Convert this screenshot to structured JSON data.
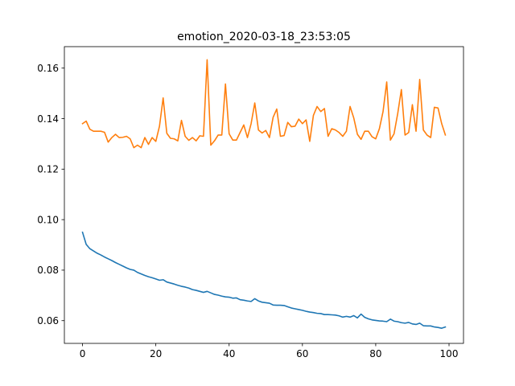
{
  "chart_data": {
    "type": "line",
    "title": "emotion_2020-03-18_23:53:05",
    "xlabel": "",
    "ylabel": "",
    "xlim": [
      -4.95,
      103.95
    ],
    "ylim": [
      0.051,
      0.1685
    ],
    "grid": false,
    "x_ticks": [
      0,
      20,
      40,
      60,
      80,
      100
    ],
    "x_tick_labels": [
      "0",
      "20",
      "40",
      "60",
      "80",
      "100"
    ],
    "y_ticks": [
      0.06,
      0.08,
      0.1,
      0.12,
      0.14,
      0.16
    ],
    "y_tick_labels": [
      "0.06",
      "0.08",
      "0.10",
      "0.12",
      "0.14",
      "0.16"
    ],
    "series": [
      {
        "color": "#1f77b4",
        "x": [
          0,
          1,
          2,
          3,
          4,
          5,
          6,
          7,
          8,
          9,
          10,
          11,
          12,
          13,
          14,
          15,
          16,
          17,
          18,
          19,
          20,
          21,
          22,
          23,
          24,
          25,
          26,
          27,
          28,
          29,
          30,
          31,
          32,
          33,
          34,
          35,
          36,
          37,
          38,
          39,
          40,
          41,
          42,
          43,
          44,
          45,
          46,
          47,
          48,
          49,
          50,
          51,
          52,
          53,
          54,
          55,
          56,
          57,
          58,
          59,
          60,
          61,
          62,
          63,
          64,
          65,
          66,
          67,
          68,
          69,
          70,
          71,
          72,
          73,
          74,
          75,
          76,
          77,
          78,
          79,
          80,
          81,
          82,
          83,
          84,
          85,
          86,
          87,
          88,
          89,
          90,
          91,
          92,
          93,
          94,
          95,
          96,
          97,
          98,
          99
        ],
        "values": [
          0.095,
          0.0902,
          0.0885,
          0.0876,
          0.0867,
          0.086,
          0.0852,
          0.0845,
          0.0838,
          0.083,
          0.0823,
          0.0816,
          0.0809,
          0.0803,
          0.08,
          0.0791,
          0.0785,
          0.0779,
          0.0774,
          0.077,
          0.0765,
          0.076,
          0.0762,
          0.0753,
          0.0749,
          0.0745,
          0.074,
          0.0736,
          0.0733,
          0.0729,
          0.0723,
          0.072,
          0.0716,
          0.0712,
          0.0716,
          0.071,
          0.0704,
          0.0701,
          0.0697,
          0.0694,
          0.0693,
          0.0689,
          0.069,
          0.0683,
          0.0681,
          0.0678,
          0.0676,
          0.0687,
          0.0678,
          0.0673,
          0.0671,
          0.0669,
          0.0662,
          0.0661,
          0.0661,
          0.066,
          0.0655,
          0.065,
          0.0647,
          0.0644,
          0.0641,
          0.0637,
          0.0634,
          0.0632,
          0.0629,
          0.0628,
          0.0624,
          0.0624,
          0.0623,
          0.0622,
          0.0619,
          0.0614,
          0.0617,
          0.0614,
          0.062,
          0.0611,
          0.0626,
          0.0613,
          0.0607,
          0.0603,
          0.0601,
          0.0599,
          0.0598,
          0.0596,
          0.0606,
          0.0598,
          0.0596,
          0.0592,
          0.059,
          0.0593,
          0.0587,
          0.0585,
          0.059,
          0.058,
          0.0579,
          0.0579,
          0.0575,
          0.0573,
          0.057,
          0.0575
        ],
        "name": ""
      },
      {
        "color": "#ff7f0e",
        "x": [
          0,
          1,
          2,
          3,
          4,
          5,
          6,
          7,
          8,
          9,
          10,
          11,
          12,
          13,
          14,
          15,
          16,
          17,
          18,
          19,
          20,
          21,
          22,
          23,
          24,
          25,
          26,
          27,
          28,
          29,
          30,
          31,
          32,
          33,
          34,
          35,
          36,
          37,
          38,
          39,
          40,
          41,
          42,
          43,
          44,
          45,
          46,
          47,
          48,
          49,
          50,
          51,
          52,
          53,
          54,
          55,
          56,
          57,
          58,
          59,
          60,
          61,
          62,
          63,
          64,
          65,
          66,
          67,
          68,
          69,
          70,
          71,
          72,
          73,
          74,
          75,
          76,
          77,
          78,
          79,
          80,
          81,
          82,
          83,
          84,
          85,
          86,
          87,
          88,
          89,
          90,
          91,
          92,
          93,
          94,
          95,
          96,
          97,
          98,
          99
        ],
        "values": [
          0.138,
          0.139,
          0.1358,
          0.135,
          0.135,
          0.135,
          0.1346,
          0.1307,
          0.1325,
          0.1338,
          0.1325,
          0.1326,
          0.133,
          0.132,
          0.1285,
          0.1295,
          0.1285,
          0.1325,
          0.1298,
          0.1325,
          0.131,
          0.137,
          0.1482,
          0.1342,
          0.1322,
          0.132,
          0.1312,
          0.1393,
          0.133,
          0.1314,
          0.1325,
          0.1312,
          0.1332,
          0.133,
          0.1633,
          0.1295,
          0.1312,
          0.1335,
          0.1335,
          0.1537,
          0.134,
          0.1315,
          0.1315,
          0.1345,
          0.1375,
          0.1325,
          0.138,
          0.1462,
          0.1355,
          0.1343,
          0.1353,
          0.1325,
          0.1405,
          0.1438,
          0.133,
          0.1333,
          0.1385,
          0.1368,
          0.137,
          0.1398,
          0.138,
          0.1395,
          0.131,
          0.1413,
          0.1448,
          0.1428,
          0.144,
          0.133,
          0.136,
          0.1355,
          0.1345,
          0.133,
          0.135,
          0.1448,
          0.1403,
          0.1338,
          0.1318,
          0.135,
          0.135,
          0.1328,
          0.132,
          0.136,
          0.1428,
          0.1545,
          0.1315,
          0.134,
          0.142,
          0.1515,
          0.1335,
          0.1345,
          0.1455,
          0.135,
          0.1555,
          0.1355,
          0.1335,
          0.1325,
          0.1445,
          0.1442,
          0.138,
          0.1335
        ],
        "name": ""
      }
    ]
  }
}
